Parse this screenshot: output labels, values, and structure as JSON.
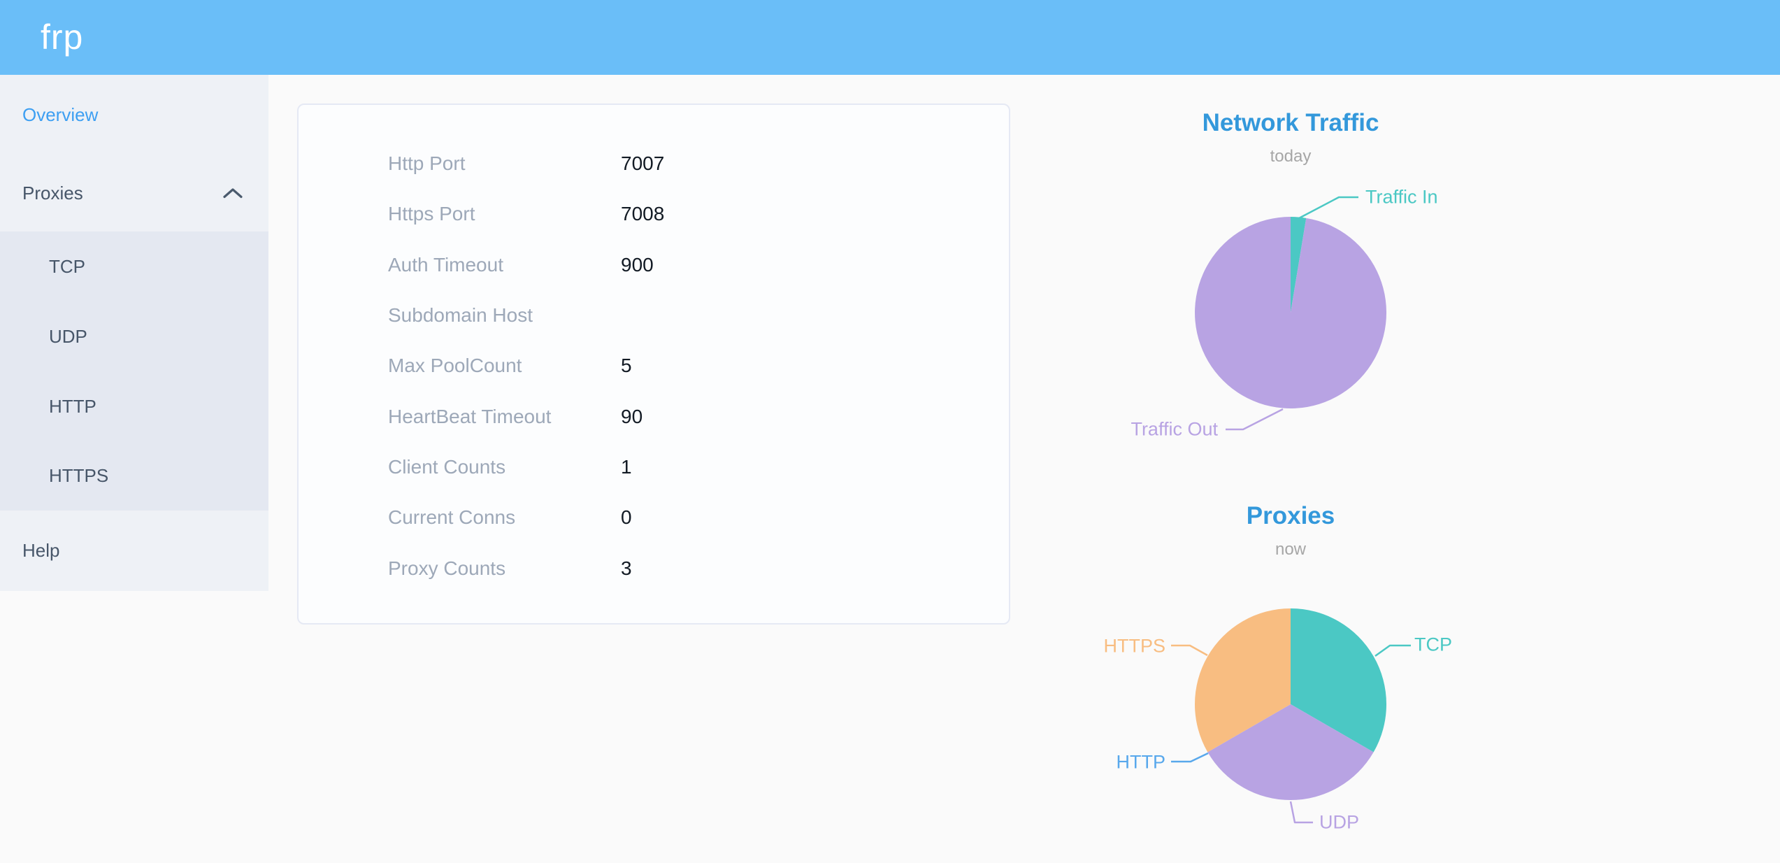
{
  "header": {
    "logo": "frp"
  },
  "theme": {
    "header_bg": "#6abef8",
    "sidebar_bg": "#eef1f6",
    "submenu_bg": "#e4e8f1",
    "menu_text": "#475669",
    "menu_active": "#3d9ff2",
    "chart_title_blue": "#3398db",
    "card_label_gray": "#9da8b8"
  },
  "sidebar": {
    "items": [
      {
        "label": "Overview",
        "active": true
      },
      {
        "label": "Proxies",
        "expanded": true,
        "icon": "chevron-up",
        "children": [
          "TCP",
          "UDP",
          "HTTP",
          "HTTPS"
        ]
      },
      {
        "label": "Help"
      }
    ]
  },
  "overview_card": {
    "rows": [
      {
        "label": "Http Port",
        "value": "7007"
      },
      {
        "label": "Https Port",
        "value": "7008"
      },
      {
        "label": "Auth Timeout",
        "value": "900"
      },
      {
        "label": "Subdomain Host",
        "value": ""
      },
      {
        "label": "Max PoolCount",
        "value": "5"
      },
      {
        "label": "HeartBeat Timeout",
        "value": "90"
      },
      {
        "label": "Client Counts",
        "value": "1"
      },
      {
        "label": "Current Conns",
        "value": "0"
      },
      {
        "label": "Proxy Counts",
        "value": "3"
      }
    ]
  },
  "chart_data": [
    {
      "type": "pie",
      "title": "Network Traffic",
      "subtitle": "today",
      "labels": [
        "Traffic In",
        "Traffic Out"
      ],
      "values": [
        2.6,
        97.4
      ],
      "values_unit": "% share of today's traffic (estimated from arc angles; absolute byte values not shown)",
      "colors": [
        "#4bc8c4",
        "#b8a3e3"
      ],
      "label_position": "outside-with-leader-lines",
      "legend": false
    },
    {
      "type": "pie",
      "title": "Proxies",
      "subtitle": "now",
      "labels": [
        "TCP",
        "UDP",
        "HTTP",
        "HTTPS"
      ],
      "values": [
        1,
        1,
        0,
        1
      ],
      "values_unit": "proxy count",
      "colors": [
        "#4bc8c4",
        "#b8a3e3",
        "#58a8ec",
        "#f8bd81"
      ],
      "label_position": "outside-with-leader-lines",
      "legend": false
    }
  ]
}
